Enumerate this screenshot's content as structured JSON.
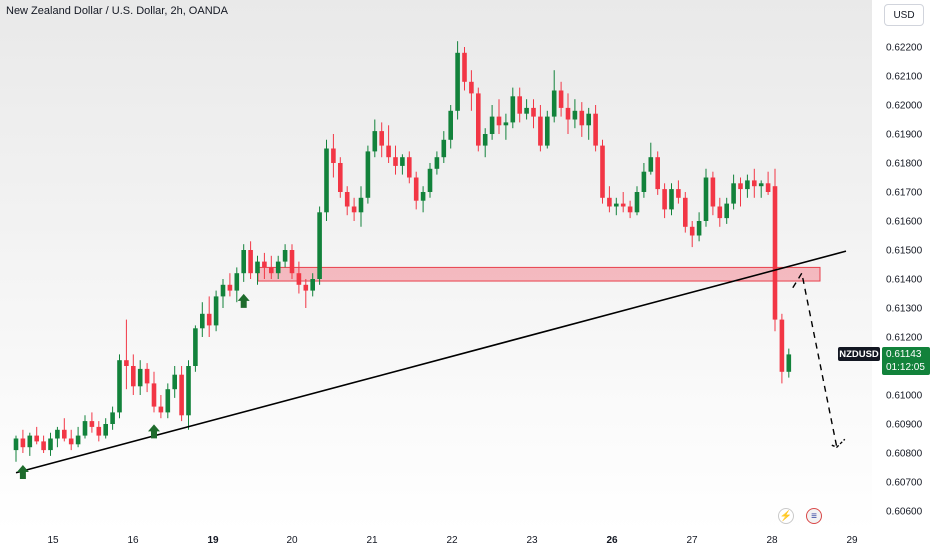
{
  "header": {
    "title": "New Zealand Dollar / U.S. Dollar, 2h, OANDA",
    "currency_button": "USD"
  },
  "price_marker": {
    "symbol": "NZDUSD",
    "price": "0.61143",
    "countdown": "01:12:05"
  },
  "events": [
    {
      "icon": "lightning-icon",
      "glyph": "⚡"
    },
    {
      "icon": "us-flag-icon",
      "glyph": "≡"
    }
  ],
  "colors": {
    "up": "#12823b",
    "down": "#f23645",
    "zone_fill": "#f4a6ad",
    "zone_border": "#e8404c",
    "trendline": "#000000",
    "arrow": "#1e6b2c",
    "grid_text": "#131722"
  },
  "chart_data": {
    "type": "candlestick",
    "title": "New Zealand Dollar / U.S. Dollar, 2h, OANDA",
    "xlabel": "",
    "ylabel": "",
    "x_ticks": [
      "15",
      "16",
      "19",
      "20",
      "21",
      "22",
      "23",
      "26",
      "27",
      "28",
      "29"
    ],
    "y_ticks": [
      "0.62200",
      "0.62100",
      "0.62000",
      "0.61900",
      "0.61800",
      "0.61700",
      "0.61600",
      "0.61500",
      "0.61400",
      "0.61300",
      "0.61200",
      "0.61100",
      "0.61000",
      "0.60900",
      "0.60800",
      "0.60700",
      "0.60600"
    ],
    "ylim": [
      0.6058,
      0.6225
    ],
    "current_price": 0.61143,
    "candles_ohlc": [
      [
        0.6081,
        0.6086,
        0.6077,
        0.6085
      ],
      [
        0.6085,
        0.6088,
        0.608,
        0.6082
      ],
      [
        0.6082,
        0.6087,
        0.6079,
        0.6086
      ],
      [
        0.6086,
        0.6089,
        0.6083,
        0.6084
      ],
      [
        0.6084,
        0.6086,
        0.608,
        0.6081
      ],
      [
        0.6081,
        0.6087,
        0.6079,
        0.6085
      ],
      [
        0.6085,
        0.6089,
        0.6082,
        0.6088
      ],
      [
        0.6088,
        0.6092,
        0.6084,
        0.6085
      ],
      [
        0.6085,
        0.6088,
        0.6081,
        0.6083
      ],
      [
        0.6083,
        0.6089,
        0.6082,
        0.6086
      ],
      [
        0.6086,
        0.6093,
        0.6085,
        0.6091
      ],
      [
        0.6091,
        0.6094,
        0.6087,
        0.6089
      ],
      [
        0.6089,
        0.6091,
        0.6084,
        0.6086
      ],
      [
        0.6086,
        0.6092,
        0.6085,
        0.609
      ],
      [
        0.609,
        0.6096,
        0.6088,
        0.6094
      ],
      [
        0.6094,
        0.6114,
        0.6092,
        0.6112
      ],
      [
        0.6112,
        0.6126,
        0.6102,
        0.611
      ],
      [
        0.611,
        0.6114,
        0.61,
        0.6103
      ],
      [
        0.6103,
        0.6112,
        0.61,
        0.6109
      ],
      [
        0.6109,
        0.6111,
        0.6101,
        0.6104
      ],
      [
        0.6104,
        0.6108,
        0.6094,
        0.6096
      ],
      [
        0.6096,
        0.61,
        0.6092,
        0.6094
      ],
      [
        0.6094,
        0.6104,
        0.6092,
        0.6102
      ],
      [
        0.6102,
        0.611,
        0.6099,
        0.6107
      ],
      [
        0.6107,
        0.611,
        0.6091,
        0.6093
      ],
      [
        0.6093,
        0.6112,
        0.6088,
        0.611
      ],
      [
        0.611,
        0.6124,
        0.6108,
        0.6123
      ],
      [
        0.6123,
        0.6132,
        0.612,
        0.6128
      ],
      [
        0.6128,
        0.6134,
        0.612,
        0.6124
      ],
      [
        0.6124,
        0.6136,
        0.6122,
        0.6134
      ],
      [
        0.6134,
        0.614,
        0.613,
        0.6138
      ],
      [
        0.6138,
        0.6142,
        0.6134,
        0.6136
      ],
      [
        0.6136,
        0.6144,
        0.6132,
        0.6142
      ],
      [
        0.6142,
        0.6152,
        0.6139,
        0.615
      ],
      [
        0.615,
        0.6153,
        0.614,
        0.6142
      ],
      [
        0.6142,
        0.6148,
        0.6138,
        0.6146
      ],
      [
        0.6146,
        0.6149,
        0.614,
        0.6144
      ],
      [
        0.6144,
        0.6148,
        0.614,
        0.6142
      ],
      [
        0.6142,
        0.6148,
        0.614,
        0.6146
      ],
      [
        0.6146,
        0.6152,
        0.6144,
        0.615
      ],
      [
        0.615,
        0.6152,
        0.614,
        0.6142
      ],
      [
        0.6142,
        0.6146,
        0.6135,
        0.6138
      ],
      [
        0.6138,
        0.614,
        0.613,
        0.6136
      ],
      [
        0.6136,
        0.6142,
        0.6134,
        0.614
      ],
      [
        0.614,
        0.6165,
        0.6138,
        0.6163
      ],
      [
        0.6163,
        0.6188,
        0.616,
        0.6185
      ],
      [
        0.6185,
        0.619,
        0.6175,
        0.618
      ],
      [
        0.618,
        0.6182,
        0.6168,
        0.617
      ],
      [
        0.617,
        0.6172,
        0.6162,
        0.6165
      ],
      [
        0.6165,
        0.6168,
        0.616,
        0.6163
      ],
      [
        0.6163,
        0.6172,
        0.6158,
        0.6168
      ],
      [
        0.6168,
        0.6186,
        0.6166,
        0.6184
      ],
      [
        0.6184,
        0.6195,
        0.6182,
        0.6191
      ],
      [
        0.6191,
        0.6194,
        0.6182,
        0.6186
      ],
      [
        0.6186,
        0.6193,
        0.618,
        0.6182
      ],
      [
        0.6182,
        0.6186,
        0.6176,
        0.6179
      ],
      [
        0.6179,
        0.6183,
        0.6176,
        0.6182
      ],
      [
        0.6182,
        0.6184,
        0.6173,
        0.6175
      ],
      [
        0.6175,
        0.6177,
        0.6164,
        0.6167
      ],
      [
        0.6167,
        0.6172,
        0.6163,
        0.617
      ],
      [
        0.617,
        0.618,
        0.6168,
        0.6178
      ],
      [
        0.6178,
        0.6184,
        0.6176,
        0.6182
      ],
      [
        0.6182,
        0.6191,
        0.618,
        0.6188
      ],
      [
        0.6188,
        0.62,
        0.6185,
        0.6198
      ],
      [
        0.6198,
        0.6222,
        0.6195,
        0.6218
      ],
      [
        0.6218,
        0.622,
        0.6205,
        0.6208
      ],
      [
        0.6208,
        0.6212,
        0.6198,
        0.6204
      ],
      [
        0.6204,
        0.6206,
        0.6184,
        0.6186
      ],
      [
        0.6186,
        0.6192,
        0.6182,
        0.619
      ],
      [
        0.619,
        0.62,
        0.6188,
        0.6196
      ],
      [
        0.6196,
        0.6202,
        0.619,
        0.6193
      ],
      [
        0.6193,
        0.6197,
        0.6188,
        0.6194
      ],
      [
        0.6194,
        0.6206,
        0.6192,
        0.6203
      ],
      [
        0.6203,
        0.6206,
        0.6194,
        0.6197
      ],
      [
        0.6197,
        0.6202,
        0.6195,
        0.6199
      ],
      [
        0.6199,
        0.6202,
        0.6192,
        0.6196
      ],
      [
        0.6196,
        0.62,
        0.6184,
        0.6186
      ],
      [
        0.6186,
        0.6198,
        0.6185,
        0.6196
      ],
      [
        0.6196,
        0.6212,
        0.6194,
        0.6205
      ],
      [
        0.6205,
        0.6208,
        0.6196,
        0.6199
      ],
      [
        0.6199,
        0.6204,
        0.619,
        0.6195
      ],
      [
        0.6195,
        0.6202,
        0.6192,
        0.6198
      ],
      [
        0.6198,
        0.6201,
        0.6189,
        0.6193
      ],
      [
        0.6193,
        0.6199,
        0.6188,
        0.6197
      ],
      [
        0.6197,
        0.62,
        0.6184,
        0.6186
      ],
      [
        0.6186,
        0.6188,
        0.6166,
        0.6168
      ],
      [
        0.6168,
        0.6172,
        0.6163,
        0.6165
      ],
      [
        0.6165,
        0.6168,
        0.6162,
        0.6166
      ],
      [
        0.6166,
        0.617,
        0.6163,
        0.6165
      ],
      [
        0.6165,
        0.6167,
        0.6161,
        0.6163
      ],
      [
        0.6163,
        0.6172,
        0.6162,
        0.617
      ],
      [
        0.617,
        0.618,
        0.6168,
        0.6177
      ],
      [
        0.6177,
        0.6187,
        0.6176,
        0.6182
      ],
      [
        0.6182,
        0.6184,
        0.6169,
        0.6171
      ],
      [
        0.6171,
        0.6173,
        0.6161,
        0.6164
      ],
      [
        0.6164,
        0.6173,
        0.6162,
        0.6171
      ],
      [
        0.6171,
        0.6174,
        0.6166,
        0.6168
      ],
      [
        0.6168,
        0.617,
        0.6156,
        0.6158
      ],
      [
        0.6158,
        0.616,
        0.6151,
        0.6155
      ],
      [
        0.6155,
        0.6163,
        0.6153,
        0.616
      ],
      [
        0.616,
        0.6178,
        0.6158,
        0.6175
      ],
      [
        0.6175,
        0.6177,
        0.6162,
        0.6165
      ],
      [
        0.6165,
        0.6168,
        0.6158,
        0.6161
      ],
      [
        0.6161,
        0.6168,
        0.6159,
        0.6166
      ],
      [
        0.6166,
        0.6176,
        0.6164,
        0.6173
      ],
      [
        0.6173,
        0.6175,
        0.6165,
        0.6171
      ],
      [
        0.6171,
        0.6176,
        0.6168,
        0.6174
      ],
      [
        0.6174,
        0.6178,
        0.6168,
        0.6172
      ],
      [
        0.6172,
        0.6174,
        0.6168,
        0.6173
      ],
      [
        0.6173,
        0.6177,
        0.6169,
        0.617
      ],
      [
        0.6172,
        0.6178,
        0.6122,
        0.6126
      ],
      [
        0.6126,
        0.6128,
        0.6104,
        0.6108
      ],
      [
        0.6108,
        0.6116,
        0.6106,
        0.6114
      ]
    ],
    "support_zone": {
      "low": 0.61393,
      "high": 0.6144
    },
    "trendline": {
      "from": {
        "candle": 0,
        "price": 0.60732
      },
      "to": {
        "candle": 111,
        "price": 0.61437
      }
    },
    "projection": {
      "price_path": [
        0.6137,
        0.6142,
        0.6082
      ]
    },
    "up_arrows_at_candles": [
      1,
      20,
      33
    ]
  }
}
